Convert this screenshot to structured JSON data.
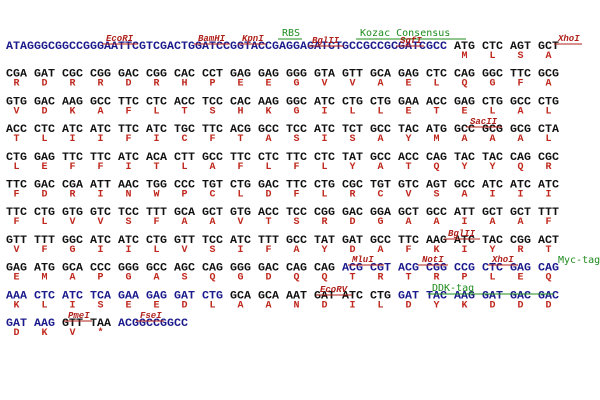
{
  "rows": [
    {
      "lead": "ATAGGGCGGCCGGGAATTCGTCGACTGGATCCGGTACCGAGGAGATCTGCCGCCGCGATCGCC",
      "codons": [
        "ATG",
        "CTC",
        "AGT",
        "GCT"
      ],
      "aa": [
        "M",
        "L",
        "S",
        "A"
      ]
    },
    {
      "codons": [
        "CGA",
        "GAT",
        "CGC",
        "CGG",
        "GAC",
        "CGG",
        "CAC",
        "CCT",
        "GAG",
        "GAG",
        "GGG",
        "GTA",
        "GTT",
        "GCA",
        "GAG",
        "CTC",
        "CAG",
        "GGC",
        "TTC",
        "GCG"
      ],
      "aa": [
        "R",
        "D",
        "R",
        "R",
        "D",
        "R",
        "H",
        "P",
        "E",
        "E",
        "G",
        "V",
        "V",
        "A",
        "E",
        "L",
        "Q",
        "G",
        "F",
        "A"
      ]
    },
    {
      "codons": [
        "GTG",
        "GAC",
        "AAG",
        "GCC",
        "TTC",
        "CTC",
        "ACC",
        "TCC",
        "CAC",
        "AAG",
        "GGC",
        "ATC",
        "CTG",
        "CTG",
        "GAA",
        "ACC",
        "GAG",
        "CTG",
        "GCC",
        "CTG"
      ],
      "aa": [
        "V",
        "D",
        "K",
        "A",
        "F",
        "L",
        "T",
        "S",
        "H",
        "K",
        "G",
        "I",
        "L",
        "L",
        "E",
        "T",
        "E",
        "L",
        "A",
        "L"
      ]
    },
    {
      "codons": [
        "ACC",
        "CTC",
        "ATC",
        "ATC",
        "TTC",
        "ATC",
        "TGC",
        "TTC",
        "ACG",
        "GCC",
        "TCC",
        "ATC",
        "TCT",
        "GCC",
        "TAC",
        "ATG",
        "GCC",
        "GCG",
        "GCG",
        "CTA"
      ],
      "aa": [
        "T",
        "L",
        "I",
        "I",
        "F",
        "I",
        "C",
        "F",
        "T",
        "A",
        "S",
        "I",
        "S",
        "A",
        "Y",
        "M",
        "A",
        "A",
        "A",
        "L"
      ]
    },
    {
      "codons": [
        "CTG",
        "GAG",
        "TTC",
        "TTC",
        "ATC",
        "ACA",
        "CTT",
        "GCC",
        "TTC",
        "CTC",
        "TTC",
        "CTC",
        "TAT",
        "GCC",
        "ACC",
        "CAG",
        "TAC",
        "TAC",
        "CAG",
        "CGC"
      ],
      "aa": [
        "L",
        "E",
        "F",
        "F",
        "I",
        "T",
        "L",
        "A",
        "F",
        "L",
        "F",
        "L",
        "Y",
        "A",
        "T",
        "Q",
        "Y",
        "Y",
        "Q",
        "R"
      ]
    },
    {
      "codons": [
        "TTC",
        "GAC",
        "CGA",
        "ATT",
        "AAC",
        "TGG",
        "CCC",
        "TGT",
        "CTG",
        "GAC",
        "TTC",
        "CTG",
        "CGC",
        "TGT",
        "GTC",
        "AGT",
        "GCC",
        "ATC",
        "ATC",
        "ATC"
      ],
      "aa": [
        "F",
        "D",
        "R",
        "I",
        "N",
        "W",
        "P",
        "C",
        "L",
        "D",
        "F",
        "L",
        "R",
        "C",
        "V",
        "S",
        "A",
        "I",
        "I",
        "I"
      ]
    },
    {
      "codons": [
        "TTC",
        "CTG",
        "GTG",
        "GTC",
        "TCC",
        "TTT",
        "GCA",
        "GCT",
        "GTG",
        "ACC",
        "TCC",
        "CGG",
        "GAC",
        "GGA",
        "GCT",
        "GCC",
        "ATT",
        "GCT",
        "GCT",
        "TTT"
      ],
      "aa": [
        "F",
        "L",
        "V",
        "V",
        "S",
        "F",
        "A",
        "A",
        "V",
        "T",
        "S",
        "R",
        "D",
        "G",
        "A",
        "A",
        "I",
        "A",
        "A",
        "F"
      ]
    },
    {
      "codons": [
        "GTT",
        "TTT",
        "GGC",
        "ATC",
        "ATC",
        "CTG",
        "GTT",
        "TCC",
        "ATC",
        "TTT",
        "GCC",
        "TAT",
        "GAT",
        "GCC",
        "TTC",
        "AAG",
        "ATC",
        "TAC",
        "CGG",
        "ACT"
      ],
      "aa": [
        "V",
        "F",
        "G",
        "I",
        "I",
        "L",
        "V",
        "S",
        "I",
        "F",
        "A",
        "Y",
        "D",
        "A",
        "F",
        "K",
        "I",
        "Y",
        "R",
        "T"
      ]
    },
    {
      "codons": [
        "GAG",
        "ATG",
        "GCA",
        "CCC",
        "GGG",
        "GCC",
        "AGC",
        "CAG",
        "GGG",
        "GAC",
        "CAG",
        "CAG",
        "ACG",
        "CGT",
        "ACG",
        "CGG",
        "CCG",
        "CTC",
        "GAG",
        "CAG"
      ],
      "aa": [
        "E",
        "M",
        "A",
        "P",
        "G",
        "A",
        "S",
        "Q",
        "G",
        "D",
        "Q",
        "Q",
        "T",
        "R",
        "T",
        "R",
        "P",
        "L",
        "E",
        "Q"
      ]
    },
    {
      "codons": [
        "AAA",
        "CTC",
        "ATC",
        "TCA",
        "GAA",
        "GAG",
        "GAT",
        "CTG",
        "GCA",
        "GCA",
        "AAT",
        "GAT",
        "ATC",
        "CTG",
        "GAT",
        "TAC",
        "AAG",
        "GAT",
        "GAC",
        "GAC"
      ],
      "aa": [
        "K",
        "L",
        "I",
        "S",
        "E",
        "E",
        "D",
        "L",
        "A",
        "A",
        "N",
        "D",
        "I",
        "L",
        "D",
        "Y",
        "K",
        "D",
        "D",
        "D"
      ]
    },
    {
      "codons": [
        "GAT",
        "AAG",
        "GTT",
        "TAA"
      ],
      "tail": "ACGGCCGGCC",
      "aa": [
        "D",
        "K",
        "V",
        "*"
      ]
    }
  ],
  "annotations": [
    {
      "label": "EcoRI",
      "kind": "enzyme"
    },
    {
      "label": "BamHI",
      "kind": "enzyme"
    },
    {
      "label": "KpnI",
      "kind": "enzyme"
    },
    {
      "label": "RBS",
      "kind": "feature"
    },
    {
      "label": "BglII",
      "kind": "enzyme"
    },
    {
      "label": "Kozac Consensus",
      "kind": "feature"
    },
    {
      "label": "SgfI",
      "kind": "enzyme"
    },
    {
      "label": "XhoI",
      "kind": "enzyme"
    },
    {
      "label": "SacII",
      "kind": "enzyme"
    },
    {
      "label": "BglII",
      "kind": "enzyme"
    },
    {
      "label": "MluI",
      "kind": "enzyme"
    },
    {
      "label": "NotI",
      "kind": "enzyme"
    },
    {
      "label": "XhoI",
      "kind": "enzyme"
    },
    {
      "label": "Myc-tag",
      "kind": "feature"
    },
    {
      "label": "EcoRV",
      "kind": "enzyme"
    },
    {
      "label": "DDK-tag",
      "kind": "feature"
    },
    {
      "label": "PmeI",
      "kind": "enzyme"
    },
    {
      "label": "FseI",
      "kind": "enzyme"
    }
  ]
}
